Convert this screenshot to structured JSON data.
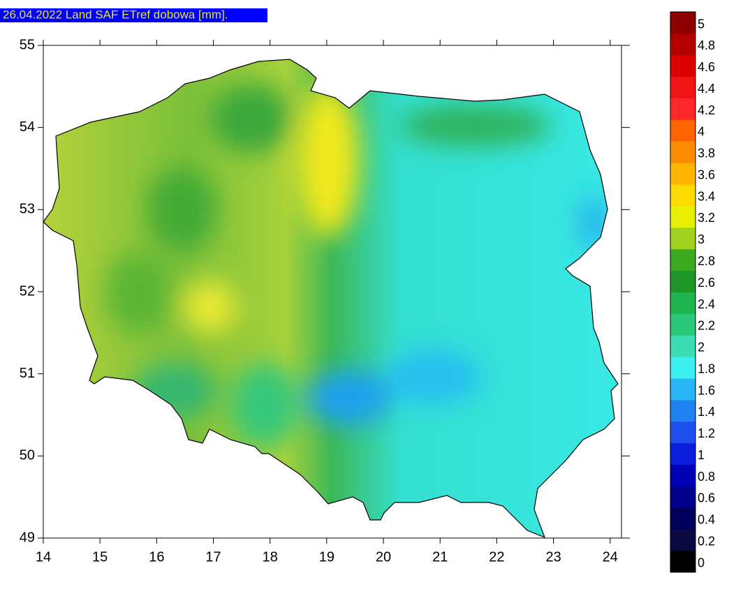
{
  "title": "26.04.2022 Land SAF ETref dobowa [mm].",
  "map": {
    "xlim": [
      14,
      24.2
    ],
    "ylim": [
      49,
      55
    ],
    "xticks": [
      14,
      15,
      16,
      17,
      18,
      19,
      20,
      21,
      22,
      23,
      24
    ],
    "yticks": [
      49,
      50,
      51,
      52,
      53,
      54,
      55
    ]
  },
  "colorbar": {
    "ticks": [
      0,
      0.2,
      0.4,
      0.6,
      0.8,
      1,
      1.2,
      1.4,
      1.6,
      1.8,
      2,
      2.2,
      2.4,
      2.6,
      2.8,
      3,
      3.2,
      3.4,
      3.6,
      3.8,
      4,
      4.2,
      4.4,
      4.6,
      4.8,
      5
    ],
    "colors": [
      "#000000",
      "#0a0a40",
      "#00005a",
      "#00008c",
      "#0000b4",
      "#0a1edc",
      "#1e50f0",
      "#1e82f0",
      "#28b4f5",
      "#3cf0f0",
      "#3cdcb4",
      "#28c878",
      "#1eb450",
      "#1e9628",
      "#3caa1e",
      "#a0d21e",
      "#e6f000",
      "#ffdc00",
      "#ffb400",
      "#ff8c00",
      "#ff6400",
      "#ff2828",
      "#f01414",
      "#dc0000",
      "#b40000",
      "#8c0000"
    ]
  }
}
